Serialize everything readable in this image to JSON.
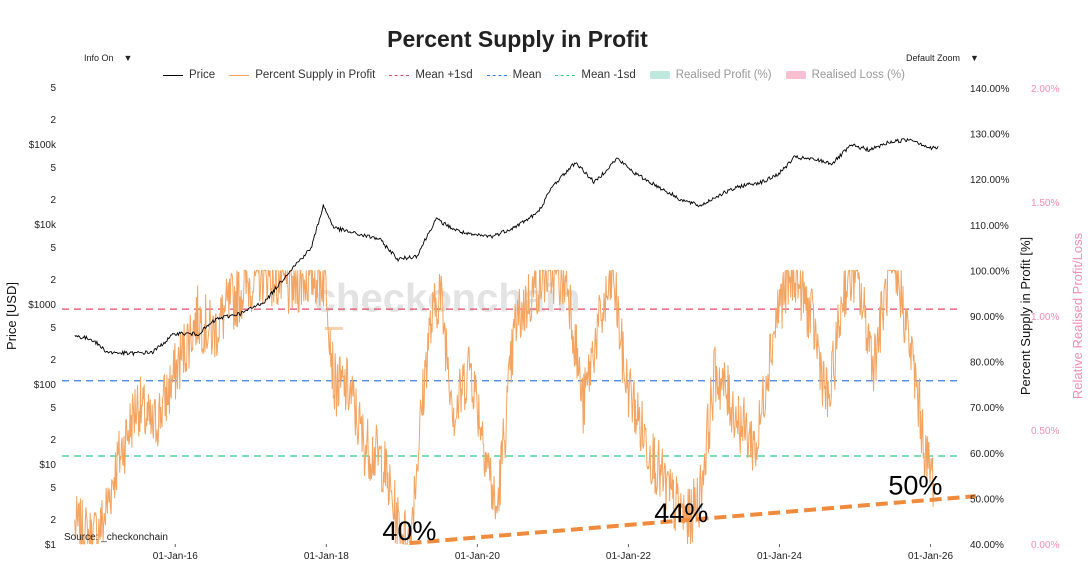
{
  "chart_data": {
    "type": "line",
    "title": "Percent Supply in Profit",
    "controls": {
      "info": "Info On",
      "zoom": "Default Zoom",
      "arrow": "▼"
    },
    "legend": [
      {
        "name": "Price",
        "color": "#000000",
        "style": "solid"
      },
      {
        "name": "Percent Supply in Profit",
        "color": "#f4a460",
        "style": "solid"
      },
      {
        "name": "Mean +1sd",
        "color": "#e8476a",
        "style": "dashed"
      },
      {
        "name": "Mean",
        "color": "#3b7ddd",
        "style": "dashed"
      },
      {
        "name": "Mean -1sd",
        "color": "#2ecc8a",
        "style": "dashed"
      },
      {
        "name": "Realised Profit (%)",
        "color": "#bfe9dd",
        "style": "box"
      },
      {
        "name": "Realised Loss (%)",
        "color": "#f8bfd0",
        "style": "box"
      }
    ],
    "x_ticks": [
      "01-Jan-16",
      "01-Jan-18",
      "01-Jan-20",
      "01-Jan-22",
      "01-Jan-24",
      "01-Jan-26"
    ],
    "x_range": [
      "2014-07-01",
      "2026-06-01"
    ],
    "y_left": {
      "label": "Price [USD]",
      "scale": "log",
      "range": [
        1,
        500000
      ],
      "major_ticks": [
        "$1",
        "$10",
        "$100",
        "$1000",
        "$10k",
        "$100k"
      ],
      "minor_labels": [
        "2",
        "5"
      ]
    },
    "y_right": {
      "label": "Percent Supply in Profit [%]",
      "range": [
        40,
        140
      ],
      "ticks": [
        "40.00%",
        "50.00%",
        "60.00%",
        "70.00%",
        "80.00%",
        "90.00%",
        "100.00%",
        "110.00%",
        "120.00%",
        "130.00%",
        "140.00%"
      ]
    },
    "y_right2": {
      "label": "Relative Realised Profit/Loss",
      "range": [
        0,
        2
      ],
      "ticks": [
        "0.00%",
        "0.50%",
        "1.00%",
        "1.50%",
        "2.00%"
      ]
    },
    "reference_lines": {
      "mean_plus_1sd": 91.5,
      "mean": 75.8,
      "mean_minus_1sd": 59.3
    },
    "price_series": {
      "x": [
        2014.67,
        2014.9,
        2015.1,
        2015.4,
        2015.7,
        2016.0,
        2016.3,
        2016.55,
        2016.9,
        2017.2,
        2017.5,
        2017.8,
        2017.96,
        2018.1,
        2018.4,
        2018.7,
        2018.95,
        2019.2,
        2019.45,
        2019.7,
        2019.9,
        2020.2,
        2020.5,
        2020.8,
        2021.0,
        2021.3,
        2021.55,
        2021.85,
        2022.1,
        2022.4,
        2022.7,
        2022.95,
        2023.2,
        2023.5,
        2023.8,
        2024.0,
        2024.2,
        2024.5,
        2024.7,
        2024.95,
        2025.2,
        2025.45,
        2025.75,
        2026.0,
        2026.1
      ],
      "y": [
        400,
        360,
        250,
        240,
        250,
        430,
        420,
        650,
        780,
        1100,
        2500,
        5000,
        17000,
        9000,
        7500,
        6500,
        3600,
        4000,
        11500,
        8500,
        7300,
        7000,
        9200,
        13800,
        30000,
        59000,
        33000,
        66000,
        42000,
        29000,
        20000,
        16800,
        23000,
        30000,
        34000,
        43000,
        68000,
        63000,
        57000,
        96000,
        84000,
        105000,
        115000,
        88000,
        90000
      ]
    },
    "profit_series": {
      "x": [
        2014.67,
        2014.9,
        2015.05,
        2015.2,
        2015.5,
        2015.7,
        2015.9,
        2016.1,
        2016.3,
        2016.5,
        2016.7,
        2016.95,
        2017.2,
        2017.5,
        2017.8,
        2018.0,
        2018.1,
        2018.3,
        2018.5,
        2018.75,
        2018.95,
        2019.1,
        2019.35,
        2019.5,
        2019.7,
        2019.9,
        2020.15,
        2020.25,
        2020.5,
        2020.75,
        2020.95,
        2021.2,
        2021.4,
        2021.55,
        2021.8,
        2021.95,
        2022.2,
        2022.45,
        2022.6,
        2022.8,
        2022.95,
        2023.15,
        2023.5,
        2023.7,
        2023.85,
        2024.0,
        2024.2,
        2024.45,
        2024.65,
        2024.85,
        2025.0,
        2025.25,
        2025.45,
        2025.6,
        2025.8,
        2025.95,
        2026.05
      ],
      "y": [
        44,
        41,
        45,
        56,
        71,
        65,
        73,
        82,
        90,
        86,
        92,
        97,
        100,
        96,
        99,
        98,
        75,
        74,
        62,
        58,
        44,
        40,
        85,
        96,
        68,
        80,
        57,
        46,
        88,
        96,
        100,
        97,
        70,
        84,
        99,
        77,
        64,
        54,
        49,
        45,
        51,
        78,
        66,
        61,
        80,
        93,
        100,
        88,
        70,
        96,
        100,
        80,
        99,
        96,
        76,
        58,
        54
      ]
    },
    "annotations": [
      {
        "text": "40%",
        "x": 2019.1,
        "y": 40
      },
      {
        "text": "44%",
        "x": 2022.7,
        "y": 44
      },
      {
        "text": "50%",
        "x": 2025.8,
        "y": 50
      }
    ],
    "trendline": {
      "x": [
        2019.1,
        2026.6
      ],
      "y": [
        40.2,
        50.5
      ],
      "color": "#f08a3c"
    },
    "watermark": "checkonchain",
    "source": "Source: _checkonchain"
  }
}
